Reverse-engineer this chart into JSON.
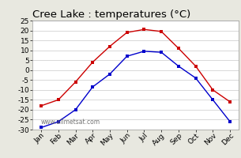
{
  "title": "Cree Lake : temperatures (°C)",
  "months": [
    "Jan",
    "Feb",
    "Mar",
    "Apr",
    "May",
    "Jun",
    "Jul",
    "Aug",
    "Sep",
    "Oct",
    "Nov",
    "Dec"
  ],
  "max_temps": [
    -18,
    -15,
    -6,
    4,
    12,
    19,
    20.5,
    19.5,
    11,
    2,
    -10,
    -16
  ],
  "min_temps": [
    -29,
    -26,
    -20,
    -8.5,
    -2,
    7,
    9.5,
    9,
    2,
    -4,
    -15,
    -26
  ],
  "max_color": "#cc0000",
  "min_color": "#0000cc",
  "bg_color": "#e8e8e0",
  "plot_bg": "#ffffff",
  "ylim": [
    -30,
    25
  ],
  "yticks": [
    -30,
    -25,
    -20,
    -15,
    -10,
    -5,
    0,
    5,
    10,
    15,
    20,
    25
  ],
  "watermark": "www.allmetsat.com",
  "title_fontsize": 9.5,
  "tick_fontsize": 6.5,
  "watermark_fontsize": 5.5
}
